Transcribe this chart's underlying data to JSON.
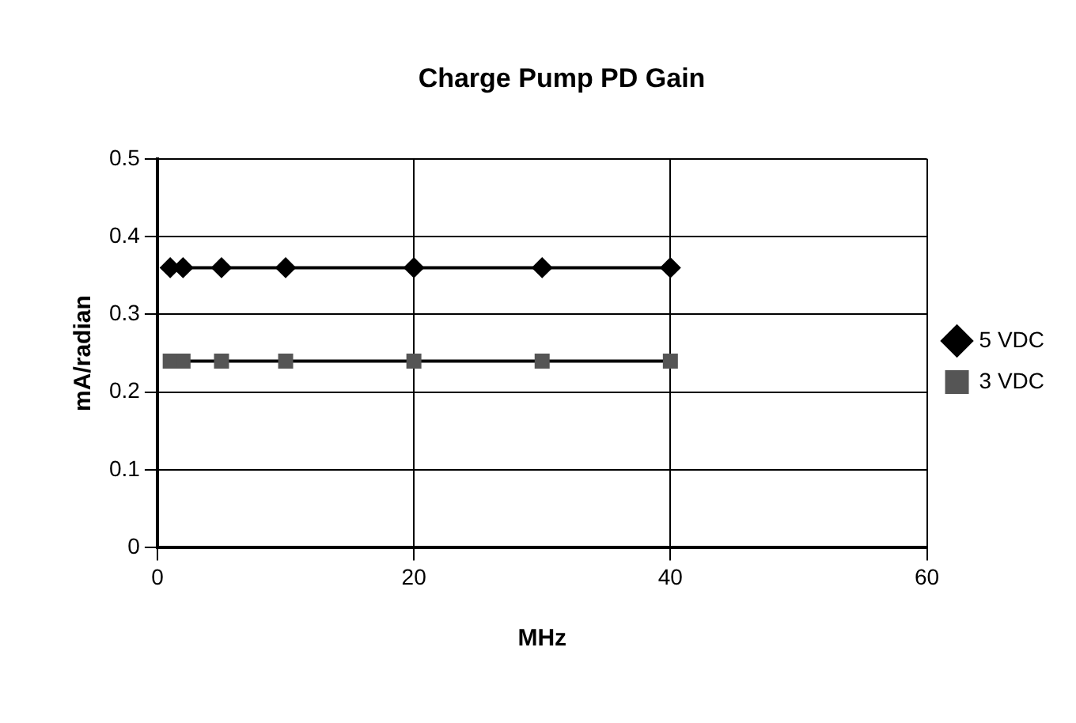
{
  "chart_data": {
    "type": "line",
    "title": "Charge Pump PD Gain",
    "xlabel": "MHz",
    "ylabel": "mA/radian",
    "x": [
      1,
      2,
      5,
      10,
      20,
      30,
      40
    ],
    "series": [
      {
        "name": "5 VDC",
        "color": "#000000",
        "marker": "diamond",
        "values": [
          0.36,
          0.36,
          0.36,
          0.36,
          0.36,
          0.36,
          0.36
        ]
      },
      {
        "name": "3 VDC",
        "color": "#555555",
        "marker": "square",
        "values": [
          0.24,
          0.24,
          0.24,
          0.24,
          0.24,
          0.24,
          0.24
        ]
      }
    ],
    "xlim": [
      0,
      60
    ],
    "xticks": [
      0,
      20,
      40,
      60
    ],
    "ylim": [
      0,
      0.5
    ],
    "yticks": [
      0,
      0.1,
      0.2,
      0.3,
      0.4,
      0.5
    ],
    "grid": true,
    "legend": "right",
    "line_style": "solid"
  }
}
